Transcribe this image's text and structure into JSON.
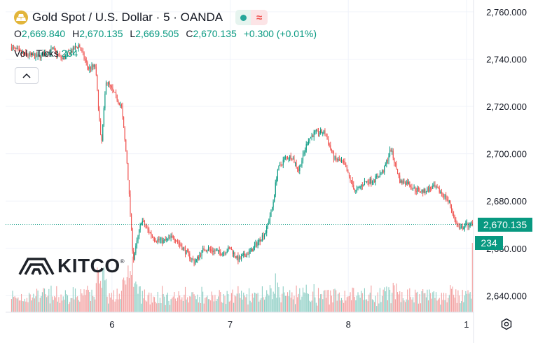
{
  "header": {
    "title": "Gold Spot / U.S. Dollar · 5 · OANDA",
    "symbol_icon": "gold-bars-icon",
    "wave_glyph": "≈"
  },
  "ohlc": {
    "o_label": "O",
    "o_value": "2,669.840",
    "h_label": "H",
    "h_value": "2,670.135",
    "l_label": "L",
    "l_value": "2,669.505",
    "c_label": "C",
    "c_value": "2,670.135",
    "change": "+0.300 (+0.01%)"
  },
  "volume": {
    "label": "Vol · Ticks",
    "value": "234"
  },
  "logo": {
    "text": "KITCO",
    "mark": "®"
  },
  "price_tag": "2,670.135",
  "volume_tag": "234",
  "colors": {
    "up": "#089981",
    "down": "#ef5350",
    "up_vol": "#8fcfc5",
    "down_vol": "#f3a3a3"
  },
  "chart_data": {
    "type": "candlestick",
    "title": "Gold Spot / U.S. Dollar · 5 · OANDA",
    "y_ticks": [
      "2,640.000",
      "2,660.000",
      "2,680.000",
      "2,700.000",
      "2,720.000",
      "2,740.000",
      "2,760.000"
    ],
    "y_tick_values": [
      2640,
      2660,
      2680,
      2700,
      2720,
      2740,
      2760
    ],
    "x_ticks": [
      "6",
      "7",
      "8",
      "1"
    ],
    "x_tick_positions": [
      0.5,
      1.5,
      2.5,
      3.5
    ],
    "ylim": [
      2633,
      2765
    ],
    "xlim": [
      -0.4,
      3.56
    ],
    "last_price": 2670.135,
    "grid": true,
    "x": [
      -0.35,
      -0.25,
      -0.12,
      0.0,
      0.08,
      0.22,
      0.3,
      0.36,
      0.41,
      0.45,
      0.5,
      0.58,
      0.63,
      0.68,
      0.75,
      0.8,
      0.86,
      0.94,
      1.02,
      1.1,
      1.2,
      1.28,
      1.36,
      1.43,
      1.5,
      1.57,
      1.62,
      1.68,
      1.74,
      1.8,
      1.86,
      1.9,
      1.96,
      2.02,
      2.08,
      2.16,
      2.22,
      2.3,
      2.38,
      2.46,
      2.5,
      2.56,
      2.64,
      2.72,
      2.8,
      2.86,
      2.94,
      3.0,
      3.06,
      3.14,
      3.22,
      3.3,
      3.36,
      3.4,
      3.44,
      3.5,
      3.55
    ],
    "close": [
      2745,
      2742,
      2741,
      2744,
      2740,
      2746,
      2736,
      2737,
      2703,
      2731,
      2727,
      2720,
      2695,
      2655,
      2672,
      2668,
      2664,
      2663,
      2665,
      2660,
      2654,
      2660,
      2659,
      2658,
      2660,
      2655,
      2657,
      2659,
      2663,
      2667,
      2678,
      2693,
      2698,
      2699,
      2693,
      2706,
      2709,
      2709,
      2698,
      2696,
      2691,
      2684,
      2688,
      2689,
      2693,
      2702,
      2688,
      2688,
      2685,
      2684,
      2686,
      2683,
      2679,
      2672,
      2668,
      2670,
      2670.135
    ],
    "volume_axis_max": 260,
    "volume_last": 234
  }
}
